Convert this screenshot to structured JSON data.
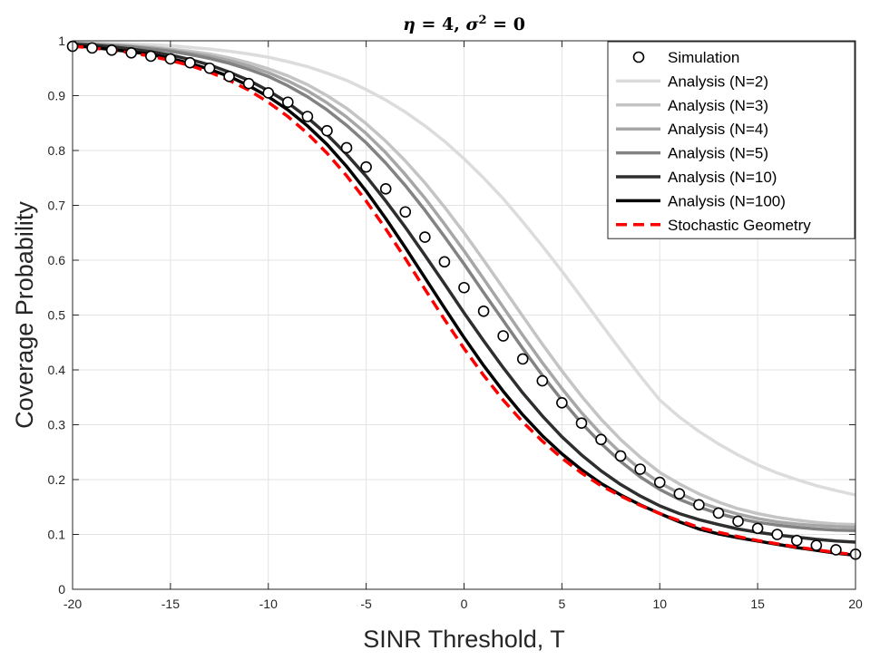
{
  "chart_data": {
    "type": "line",
    "title": {
      "eta_symbol": "η",
      "eta_text": " = 4, ",
      "sigma_symbol": "σ",
      "sigma_sup": "2",
      "sigma_text": " = 0"
    },
    "xlabel": "SINR Threshold, T",
    "ylabel": "Coverage Probability",
    "xlim": [
      -20,
      20
    ],
    "ylim": [
      0,
      1
    ],
    "xticks": [
      -20,
      -15,
      -10,
      -5,
      0,
      5,
      10,
      15,
      20
    ],
    "yticks": [
      0,
      0.1,
      0.2,
      0.3,
      0.4,
      0.5,
      0.6,
      0.7,
      0.8,
      0.9,
      1
    ],
    "grid": true,
    "legend_position": "top-right",
    "x": [
      -20,
      -19,
      -18,
      -17,
      -16,
      -15,
      -14,
      -13,
      -12,
      -11,
      -10,
      -9,
      -8,
      -7,
      -6,
      -5,
      -4,
      -3,
      -2,
      -1,
      0,
      1,
      2,
      3,
      4,
      5,
      6,
      7,
      8,
      9,
      10,
      11,
      12,
      13,
      14,
      15,
      16,
      17,
      18,
      19,
      20
    ],
    "series": [
      {
        "name": "Analysis (N=2)",
        "style": "solid",
        "color": "#dcdcdc",
        "values": [
          0.997,
          0.996,
          0.995,
          0.994,
          0.993,
          0.991,
          0.988,
          0.985,
          0.981,
          0.976,
          0.97,
          0.962,
          0.953,
          0.941,
          0.928,
          0.911,
          0.892,
          0.87,
          0.845,
          0.817,
          0.785,
          0.75,
          0.712,
          0.67,
          0.626,
          0.58,
          0.532,
          0.484,
          0.436,
          0.389,
          0.345,
          0.314,
          0.288,
          0.265,
          0.245,
          0.227,
          0.212,
          0.2,
          0.189,
          0.18,
          0.172
        ]
      },
      {
        "name": "Analysis (N=3)",
        "style": "solid",
        "color": "#c4c4c4",
        "values": [
          0.996,
          0.995,
          0.993,
          0.991,
          0.989,
          0.985,
          0.981,
          0.976,
          0.969,
          0.96,
          0.949,
          0.936,
          0.92,
          0.9,
          0.877,
          0.849,
          0.817,
          0.781,
          0.741,
          0.697,
          0.65,
          0.6,
          0.549,
          0.498,
          0.447,
          0.398,
          0.352,
          0.31,
          0.273,
          0.241,
          0.213,
          0.192,
          0.174,
          0.159,
          0.147,
          0.138,
          0.131,
          0.126,
          0.122,
          0.119,
          0.118
        ]
      },
      {
        "name": "Analysis (N=4)",
        "style": "solid",
        "color": "#a6a6a6",
        "values": [
          0.996,
          0.994,
          0.992,
          0.99,
          0.987,
          0.983,
          0.978,
          0.972,
          0.964,
          0.954,
          0.942,
          0.927,
          0.909,
          0.887,
          0.861,
          0.831,
          0.796,
          0.756,
          0.713,
          0.666,
          0.617,
          0.566,
          0.514,
          0.463,
          0.413,
          0.366,
          0.322,
          0.283,
          0.249,
          0.219,
          0.194,
          0.175,
          0.159,
          0.147,
          0.137,
          0.129,
          0.123,
          0.119,
          0.116,
          0.114,
          0.113
        ]
      },
      {
        "name": "Analysis (N=5)",
        "style": "solid",
        "color": "#828282",
        "values": [
          0.995,
          0.993,
          0.991,
          0.989,
          0.985,
          0.981,
          0.975,
          0.968,
          0.959,
          0.948,
          0.935,
          0.918,
          0.898,
          0.874,
          0.846,
          0.814,
          0.777,
          0.736,
          0.691,
          0.643,
          0.593,
          0.541,
          0.49,
          0.439,
          0.39,
          0.345,
          0.303,
          0.266,
          0.233,
          0.205,
          0.182,
          0.164,
          0.15,
          0.138,
          0.129,
          0.122,
          0.117,
          0.113,
          0.11,
          0.108,
          0.107
        ]
      },
      {
        "name": "Analysis (N=10)",
        "style": "solid",
        "color": "#2e2e2e",
        "values": [
          0.994,
          0.992,
          0.989,
          0.985,
          0.98,
          0.974,
          0.966,
          0.956,
          0.943,
          0.928,
          0.909,
          0.887,
          0.86,
          0.829,
          0.793,
          0.753,
          0.708,
          0.66,
          0.609,
          0.557,
          0.504,
          0.453,
          0.404,
          0.358,
          0.316,
          0.278,
          0.245,
          0.216,
          0.191,
          0.17,
          0.152,
          0.138,
          0.127,
          0.118,
          0.11,
          0.104,
          0.099,
          0.095,
          0.091,
          0.088,
          0.086
        ]
      },
      {
        "name": "Analysis (N=100)",
        "style": "solid",
        "color": "#000000",
        "values": [
          0.991,
          0.988,
          0.984,
          0.98,
          0.975,
          0.968,
          0.959,
          0.948,
          0.935,
          0.918,
          0.898,
          0.874,
          0.845,
          0.811,
          0.771,
          0.726,
          0.676,
          0.623,
          0.568,
          0.513,
          0.459,
          0.408,
          0.361,
          0.318,
          0.28,
          0.247,
          0.218,
          0.193,
          0.172,
          0.154,
          0.138,
          0.123,
          0.11,
          0.101,
          0.094,
          0.088,
          0.082,
          0.076,
          0.071,
          0.066,
          0.062
        ]
      },
      {
        "name": "Stochastic Geometry",
        "style": "dashed",
        "color": "#ff0000",
        "values": [
          0.99,
          0.987,
          0.983,
          0.978,
          0.972,
          0.964,
          0.955,
          0.943,
          0.928,
          0.91,
          0.888,
          0.862,
          0.831,
          0.795,
          0.754,
          0.708,
          0.657,
          0.603,
          0.547,
          0.492,
          0.439,
          0.39,
          0.345,
          0.305,
          0.27,
          0.239,
          0.212,
          0.189,
          0.17,
          0.153,
          0.138,
          0.125,
          0.113,
          0.104,
          0.096,
          0.089,
          0.083,
          0.077,
          0.072,
          0.067,
          0.063
        ]
      }
    ],
    "simulation": {
      "name": "Simulation",
      "marker": "circle",
      "x": [
        -20,
        -19,
        -18,
        -17,
        -16,
        -15,
        -14,
        -13,
        -12,
        -11,
        -10,
        -9,
        -8,
        -7,
        -6,
        -5,
        -4,
        -3,
        -2,
        -1,
        0,
        1,
        2,
        3,
        4,
        5,
        6,
        7,
        8,
        9,
        10,
        11,
        12,
        13,
        14,
        15,
        16,
        17,
        18,
        19,
        20
      ],
      "values": [
        0.99,
        0.987,
        0.983,
        0.978,
        0.972,
        0.967,
        0.96,
        0.95,
        0.935,
        0.922,
        0.905,
        0.888,
        0.862,
        0.836,
        0.805,
        0.77,
        0.73,
        0.688,
        0.642,
        0.597,
        0.55,
        0.507,
        0.462,
        0.42,
        0.38,
        0.34,
        0.303,
        0.273,
        0.243,
        0.219,
        0.195,
        0.174,
        0.154,
        0.139,
        0.124,
        0.111,
        0.1,
        0.089,
        0.08,
        0.072,
        0.064
      ]
    }
  }
}
